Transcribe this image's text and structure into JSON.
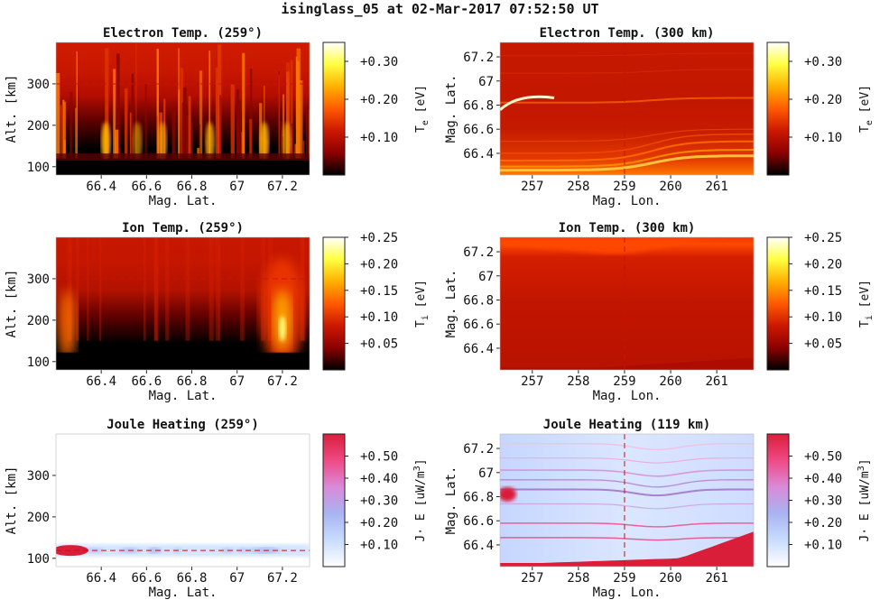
{
  "title": "isinglass_05 at 02-Mar-2017 07:52:50 UT",
  "colors": {
    "hot": [
      "#000000",
      "#8b0000",
      "#cc1800",
      "#ff5a00",
      "#ffb000",
      "#ffff40",
      "#ffffff"
    ],
    "joule": [
      "#ffffff",
      "#c8dcff",
      "#a9b4f2",
      "#d98ad8",
      "#ef4a85",
      "#d91e3a"
    ],
    "ref_line": "#cc1010"
  },
  "chart_data": [
    {
      "id": "electron-temp-alt",
      "type": "heatmap",
      "title": "Electron Temp. (259°)",
      "xlabel": "Mag. Lat.",
      "ylabel": "Alt. [km]",
      "xlim": [
        66.2,
        67.32
      ],
      "ylim": [
        80,
        400
      ],
      "xticks": [
        "66.4",
        "66.6",
        "66.8",
        "67",
        "67.2"
      ],
      "yticks": [
        "100",
        "200",
        "300"
      ],
      "ref_line": {
        "axis": "y",
        "value": 300
      },
      "colorbar": {
        "label": "T_e [eV]",
        "range": [
          0.0,
          0.35
        ],
        "ticks": [
          "+0.10",
          "+0.20",
          "+0.30"
        ],
        "colormap": "hot"
      }
    },
    {
      "id": "electron-temp-map",
      "type": "heatmap",
      "title": "Electron Temp. (300 km)",
      "xlabel": "Mag. Lon.",
      "ylabel": "Mag. Lat.",
      "xlim": [
        256.3,
        261.8
      ],
      "ylim": [
        66.22,
        67.32
      ],
      "xticks": [
        "257",
        "258",
        "259",
        "260",
        "261"
      ],
      "yticks": [
        "66.4",
        "66.6",
        "66.8",
        "67",
        "67.2"
      ],
      "ref_line": {
        "axis": "x",
        "value": 259
      },
      "colorbar": {
        "label": "T_e [eV]",
        "range": [
          0.0,
          0.35
        ],
        "ticks": [
          "+0.10",
          "+0.20",
          "+0.30"
        ],
        "colormap": "hot"
      }
    },
    {
      "id": "ion-temp-alt",
      "type": "heatmap",
      "title": "Ion Temp. (259°)",
      "xlabel": "Mag. Lat.",
      "ylabel": "Alt. [km]",
      "xlim": [
        66.2,
        67.32
      ],
      "ylim": [
        80,
        400
      ],
      "xticks": [
        "66.4",
        "66.6",
        "66.8",
        "67",
        "67.2"
      ],
      "yticks": [
        "100",
        "200",
        "300"
      ],
      "ref_line": {
        "axis": "y",
        "value": 300
      },
      "colorbar": {
        "label": "T_i [eV]",
        "range": [
          0.0,
          0.25
        ],
        "ticks": [
          "+0.05",
          "+0.10",
          "+0.15",
          "+0.20",
          "+0.25"
        ],
        "colormap": "hot"
      }
    },
    {
      "id": "ion-temp-map",
      "type": "heatmap",
      "title": "Ion Temp. (300 km)",
      "xlabel": "Mag. Lon.",
      "ylabel": "Mag. Lat.",
      "xlim": [
        256.3,
        261.8
      ],
      "ylim": [
        66.22,
        67.32
      ],
      "xticks": [
        "257",
        "258",
        "259",
        "260",
        "261"
      ],
      "yticks": [
        "66.4",
        "66.6",
        "66.8",
        "67",
        "67.2"
      ],
      "ref_line": {
        "axis": "x",
        "value": 259
      },
      "colorbar": {
        "label": "T_i [eV]",
        "range": [
          0.0,
          0.25
        ],
        "ticks": [
          "+0.05",
          "+0.10",
          "+0.15",
          "+0.20",
          "+0.25"
        ],
        "colormap": "hot"
      }
    },
    {
      "id": "joule-alt",
      "type": "heatmap",
      "title": "Joule Heating (259°)",
      "xlabel": "Mag. Lat.",
      "ylabel": "Alt. [km]",
      "xlim": [
        66.2,
        67.32
      ],
      "ylim": [
        80,
        400
      ],
      "xticks": [
        "66.4",
        "66.6",
        "66.8",
        "67",
        "67.2"
      ],
      "yticks": [
        "100",
        "200",
        "300"
      ],
      "ref_line": {
        "axis": "y",
        "value": 119
      },
      "colorbar": {
        "label": "J· E [uW/m^3]",
        "range": [
          0.0,
          0.6
        ],
        "ticks": [
          "+0.10",
          "+0.20",
          "+0.30",
          "+0.40",
          "+0.50"
        ],
        "colormap": "joule"
      }
    },
    {
      "id": "joule-map",
      "type": "heatmap",
      "title": "Joule Heating (119 km)",
      "xlabel": "Mag. Lon.",
      "ylabel": "Mag. Lat.",
      "xlim": [
        256.3,
        261.8
      ],
      "ylim": [
        66.22,
        67.32
      ],
      "xticks": [
        "257",
        "258",
        "259",
        "260",
        "261"
      ],
      "yticks": [
        "66.4",
        "66.6",
        "66.8",
        "67",
        "67.2"
      ],
      "ref_line": {
        "axis": "x",
        "value": 259
      },
      "colorbar": {
        "label": "J· E [uW/m^3]",
        "range": [
          0.0,
          0.6
        ],
        "ticks": [
          "+0.10",
          "+0.20",
          "+0.30",
          "+0.40",
          "+0.50"
        ],
        "colormap": "joule"
      }
    }
  ]
}
